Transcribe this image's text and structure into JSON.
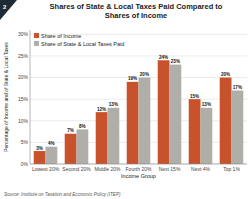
{
  "chart_data": {
    "type": "bar",
    "title": "Shares of State & Local Taxes Paid Compared to\nShares of Income",
    "xlabel": "Income Group",
    "ylabel": "Percentage of Income and of State & Local Taxes",
    "categories": [
      "Lowest 20%",
      "Second 20%",
      "Middle 20%",
      "Fourth 20%",
      "Next 15%",
      "Next 4%",
      "Top 1%"
    ],
    "series": [
      {
        "name": "Share of Income",
        "color": "#C8522B",
        "values": [
          3,
          7,
          12,
          19,
          24,
          15,
          20
        ],
        "value_labels": [
          "3%",
          "7%",
          "12%",
          "19%",
          "24%",
          "15%",
          "20%"
        ]
      },
      {
        "name": "Share of State & Local Taxes Paid",
        "color": "#B0AEA8",
        "values": [
          4,
          8,
          13,
          20,
          23,
          13,
          17
        ],
        "value_labels": [
          "4%",
          "8%",
          "13%",
          "20%",
          "23%",
          "13%",
          "17%"
        ]
      }
    ],
    "ylim": [
      0,
      31
    ],
    "yticks": [
      {
        "value": 0,
        "label": "0%"
      },
      {
        "value": 5,
        "label": "5%"
      },
      {
        "value": 10,
        "label": "10%"
      },
      {
        "value": 15,
        "label": "15%"
      },
      {
        "value": 20,
        "label": "20%"
      },
      {
        "value": 25,
        "label": "25%"
      },
      {
        "value": 30,
        "label": "30%"
      }
    ],
    "grid": true,
    "legend": "upper left",
    "data_labels": true,
    "annotations": [
      "Source: Institute on Taxation and Economic Policy (ITEP)",
      "2"
    ]
  }
}
